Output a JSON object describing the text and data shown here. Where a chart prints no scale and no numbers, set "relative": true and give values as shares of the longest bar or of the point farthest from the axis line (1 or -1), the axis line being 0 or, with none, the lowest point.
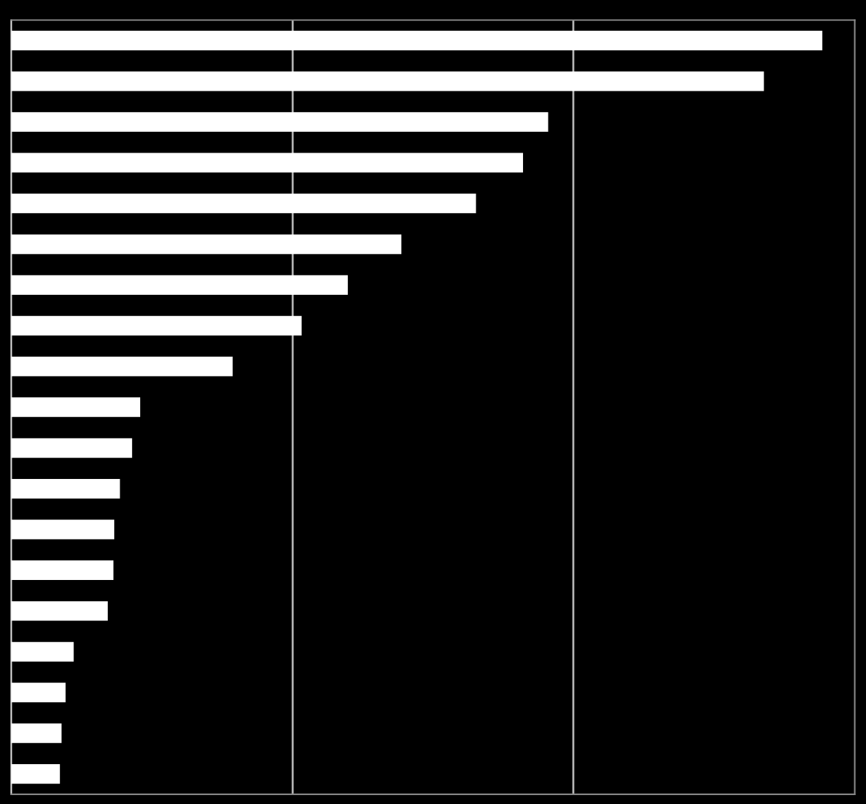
{
  "chart_data": {
    "type": "bar",
    "orientation": "horizontal",
    "relative": true,
    "categories": [
      null,
      null,
      null,
      null,
      null,
      null,
      null,
      null,
      null,
      null,
      null,
      null,
      null,
      null,
      null,
      null,
      null,
      null,
      null
    ],
    "values": [
      1,
      0.928,
      0.662,
      0.631,
      0.573,
      0.481,
      0.415,
      0.358,
      0.273,
      0.159,
      0.149,
      0.134,
      0.127,
      0.126,
      0.119,
      0.077,
      0.067,
      0.062,
      0.06
    ],
    "color": "#ffffff",
    "ref_lines": [
      {
        "axis": "x",
        "value": 0.347,
        "color": "#bbbbbb"
      },
      {
        "axis": "x",
        "value": 0.693,
        "color": "#bbbbbb"
      }
    ]
  }
}
